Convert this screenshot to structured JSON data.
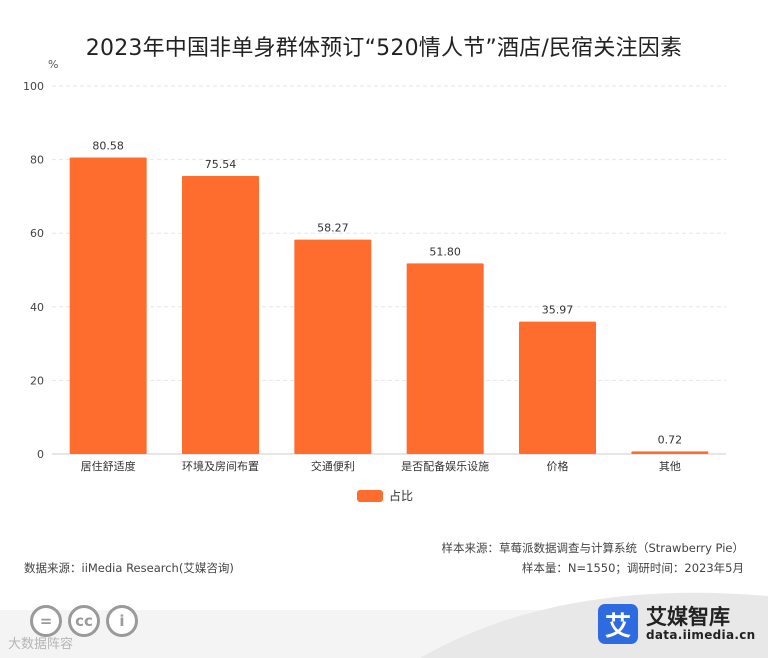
{
  "chart_data": {
    "type": "bar",
    "title": "2023年中国非单身群体预订“520情人节”酒店/民宿关注因素",
    "ylabel": "%",
    "xlabel": "",
    "ylim": [
      0,
      100
    ],
    "yticks": [
      0,
      20,
      40,
      60,
      80,
      100
    ],
    "grid": true,
    "legend": "bottom-center",
    "categories": [
      "居住舒适度",
      "环境及房间布置",
      "交通便利",
      "是否配备娱乐设施",
      "价格",
      "其他"
    ],
    "series": [
      {
        "name": "占比",
        "values": [
          80.58,
          75.54,
          58.27,
          51.8,
          35.97,
          0.72
        ],
        "labels": [
          "80.58",
          "75.54",
          "58.27",
          "51.80",
          "35.97",
          "0.72"
        ]
      }
    ]
  },
  "colors": {
    "bar": "#ff6d2e",
    "grid": "#e6e6e6",
    "axis": "#cccccc"
  },
  "footer": {
    "sample_source": "样本来源：草莓派数据调查与计算系统（Strawberry Pie）",
    "sample_size": "样本量：N=1550；调研时间：2023年5月",
    "data_source": "数据来源：iiMedia Research(艾媒咨询)",
    "watermark": "大数据阵容",
    "cc_icons": [
      "=",
      "cc",
      "i"
    ],
    "brand_mark": "艾",
    "brand_name": "艾媒智库",
    "brand_url": "data.iimedia.cn"
  }
}
